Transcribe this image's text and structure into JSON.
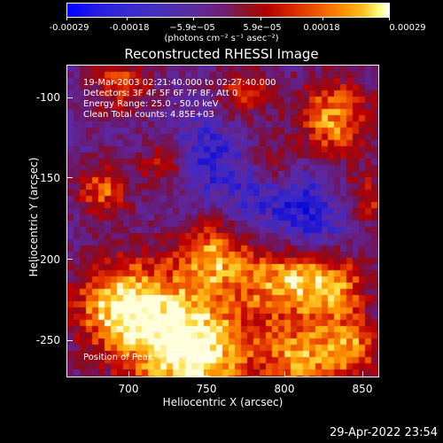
{
  "colorbar": {
    "ticks": [
      "-0.00029",
      "-0.00018",
      "−5.9e−05",
      "5.9e−05",
      "0.00018",
      "0.00029"
    ],
    "units": "(photons cm⁻² s⁻¹ asec⁻²)"
  },
  "title": "Reconstructed RHESSI Image",
  "annotation": {
    "line1": "19-Mar-2003 02:21:40.000 to 02:27:40.000",
    "line2": "Detectors: 3F 4F 5F 6F 7F 8F, Att 0",
    "line3": "Energy Range: 25.0 - 50.0 keV",
    "line4": "Clean     Total counts: 4.85E+03",
    "peak": "Position of Peak = [707,-238]"
  },
  "axes": {
    "xlabel": "Heliocentric X (arcsec)",
    "ylabel": "Heliocentric Y (arcsec)",
    "xticks": [
      "700",
      "750",
      "800",
      "850"
    ],
    "yticks": [
      "-100",
      "-150",
      "-200",
      "-250"
    ],
    "xlim": [
      665,
      857
    ],
    "ylim": [
      -273,
      -81
    ]
  },
  "timestamp": "29-Apr-2022 23:54",
  "colors": {
    "low": "#0000ff",
    "mid": "#6f1f78",
    "high": "#ff8a00",
    "peak": "#ffffff"
  }
}
